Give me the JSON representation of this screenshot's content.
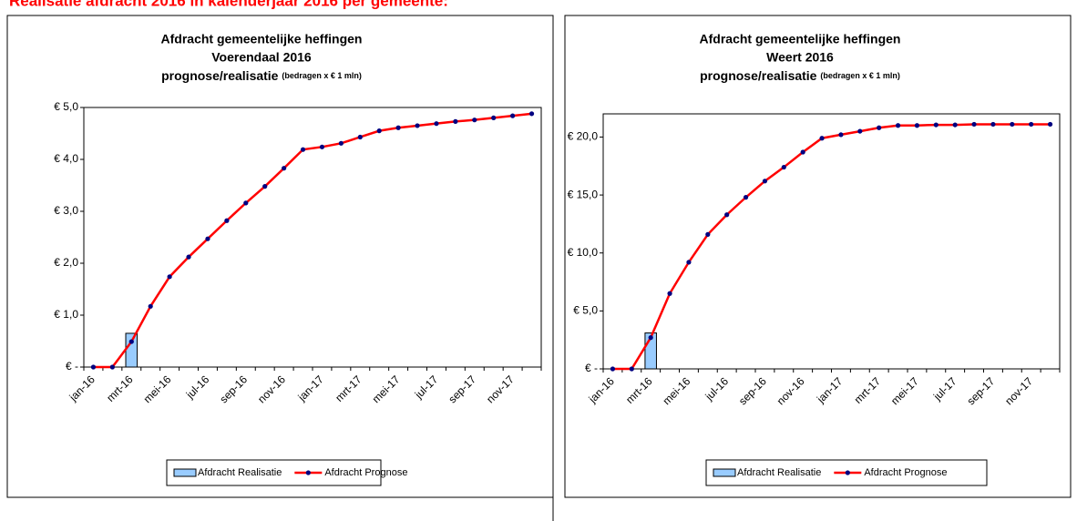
{
  "header": "Realisatie afdracht 2016 in kalenderjaar 2016 per gemeente:",
  "chart_data": [
    {
      "type": "combo",
      "title": [
        "Afdracht gemeentelijke heffingen",
        "Voerendaal 2016"
      ],
      "subtitle": "prognose/realisatie",
      "note": "(bedragen x € 1 mln)",
      "categories": [
        "jan-16",
        null,
        "mrt-16",
        null,
        "mei-16",
        null,
        "jul-16",
        null,
        "sep-16",
        null,
        "nov-16",
        null,
        "jan-17",
        null,
        "mrt-17",
        null,
        "mei-17",
        null,
        "jul-17",
        null,
        "sep-17",
        null,
        "nov-17",
        null
      ],
      "ylim": [
        0,
        5
      ],
      "yticks": [
        {
          "value": 0,
          "label": "€ -"
        },
        {
          "value": 1,
          "label": "€ 1,0"
        },
        {
          "value": 2,
          "label": "€ 2,0"
        },
        {
          "value": 3,
          "label": "€ 3,0"
        },
        {
          "value": 4,
          "label": "€ 4,0"
        },
        {
          "value": 5,
          "label": "€ 5,0"
        }
      ],
      "series": [
        {
          "name": "Afdracht Realisatie",
          "type": "bar",
          "color": "#99ccff",
          "values": [
            null,
            null,
            0.65,
            null,
            null,
            null,
            null,
            null,
            null,
            null,
            null,
            null,
            null,
            null,
            null,
            null,
            null,
            null,
            null,
            null,
            null,
            null,
            null,
            null
          ]
        },
        {
          "name": "Afdracht Prognose",
          "type": "line",
          "color": "#ff0000",
          "marker_color": "#000080",
          "values": [
            0,
            0,
            0.49,
            1.17,
            1.74,
            2.12,
            2.47,
            2.82,
            3.16,
            3.48,
            3.83,
            4.19,
            4.24,
            4.31,
            4.43,
            4.55,
            4.61,
            4.65,
            4.69,
            4.73,
            4.76,
            4.8,
            4.84,
            4.88
          ]
        }
      ]
    },
    {
      "type": "combo",
      "title": [
        "Afdracht gemeentelijke heffingen",
        "Weert 2016"
      ],
      "subtitle": "prognose/realisatie",
      "note": "(bedragen x € 1 mln)",
      "categories": [
        "jan-16",
        null,
        "mrt-16",
        null,
        "mei-16",
        null,
        "jul-16",
        null,
        "sep-16",
        null,
        "nov-16",
        null,
        "jan-17",
        null,
        "mrt-17",
        null,
        "mei-17",
        null,
        "jul-17",
        null,
        "sep-17",
        null,
        "nov-17",
        null
      ],
      "ylim": [
        0,
        22
      ],
      "yticks": [
        {
          "value": 0,
          "label": "€ -"
        },
        {
          "value": 5,
          "label": "€ 5,0"
        },
        {
          "value": 10,
          "label": "€ 10,0"
        },
        {
          "value": 15,
          "label": "€ 15,0"
        },
        {
          "value": 20,
          "label": "€ 20,0"
        }
      ],
      "series": [
        {
          "name": "Afdracht Realisatie",
          "type": "bar",
          "color": "#99ccff",
          "values": [
            null,
            null,
            3.1,
            null,
            null,
            null,
            null,
            null,
            null,
            null,
            null,
            null,
            null,
            null,
            null,
            null,
            null,
            null,
            null,
            null,
            null,
            null,
            null,
            null
          ]
        },
        {
          "name": "Afdracht Prognose",
          "type": "line",
          "color": "#ff0000",
          "marker_color": "#000080",
          "values": [
            0,
            0,
            2.7,
            6.5,
            9.2,
            11.6,
            13.3,
            14.8,
            16.2,
            17.4,
            18.7,
            19.9,
            20.2,
            20.5,
            20.8,
            21.0,
            21.0,
            21.05,
            21.05,
            21.1,
            21.1,
            21.1,
            21.1,
            21.1
          ]
        }
      ]
    }
  ]
}
